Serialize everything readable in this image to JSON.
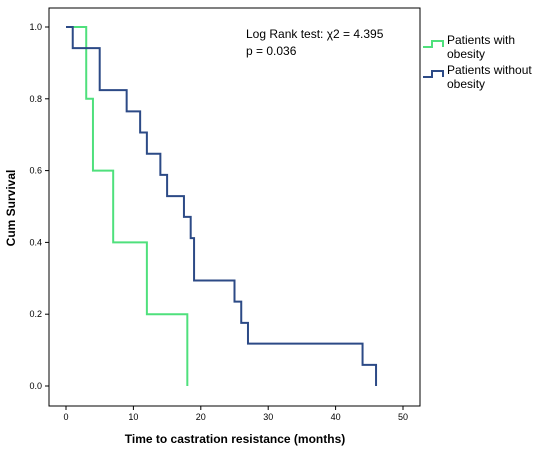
{
  "chart_data": {
    "type": "line",
    "subtype": "kaplan-meier-step",
    "xlabel": "Time to castration resistance (months)",
    "ylabel": "Cum Survival",
    "xlim": [
      0,
      50
    ],
    "ylim": [
      0.0,
      1.0
    ],
    "x_ticks": [
      0,
      10,
      20,
      30,
      40,
      50
    ],
    "y_ticks": [
      0.0,
      0.2,
      0.4,
      0.6,
      0.8,
      1.0
    ],
    "x_tick_labels": [
      "0",
      "10",
      "20",
      "30",
      "40",
      "50"
    ],
    "y_tick_labels": [
      "0.0",
      "0.2",
      "0.4",
      "0.6",
      "0.8",
      "1.0"
    ],
    "grid": false,
    "legend_position": "right",
    "annotation": {
      "line1_prefix": "Log Rank test: ",
      "line1_stat": "χ2  = 4.395",
      "line2": "p = 0.036"
    },
    "series": [
      {
        "name": "Patients with obesity",
        "legend_line1": "Patients with",
        "legend_line2": "obesity",
        "color": "#4fe07c",
        "x": [
          0,
          3,
          4,
          7,
          12,
          18
        ],
        "y": [
          1.0,
          0.8,
          0.6,
          0.4,
          0.2,
          0.0
        ]
      },
      {
        "name": "Patients without obesity",
        "legend_line1": "Patients without",
        "legend_line2": "obesity",
        "color": "#2c4a86",
        "x": [
          0,
          1,
          5,
          9,
          11,
          12,
          14,
          15,
          16,
          17.5,
          18.5,
          19,
          25,
          26,
          27,
          44,
          46
        ],
        "y": [
          1.0,
          0.941,
          0.824,
          0.765,
          0.706,
          0.647,
          0.588,
          0.529,
          0.529,
          0.471,
          0.412,
          0.294,
          0.235,
          0.176,
          0.118,
          0.059,
          0.0
        ]
      }
    ]
  }
}
